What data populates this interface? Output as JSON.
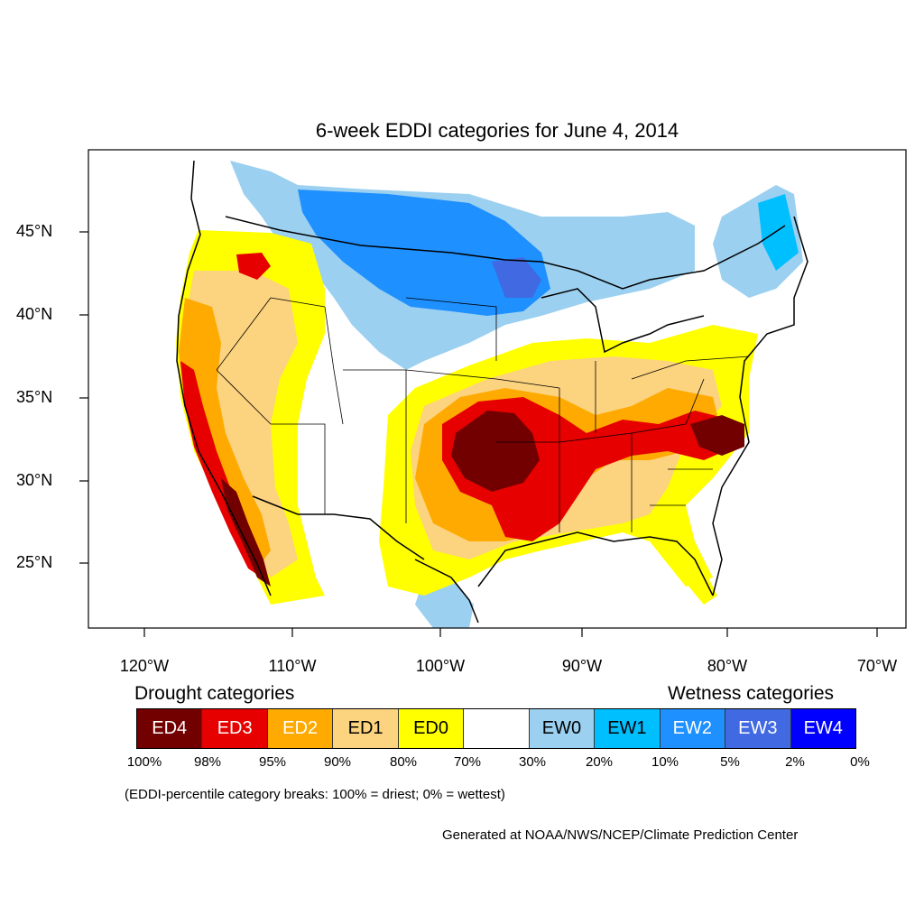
{
  "title": "6-week EDDI categories for June 4, 2014",
  "lat_labels": [
    "45°N",
    "40°N",
    "35°N",
    "30°N",
    "25°N"
  ],
  "lon_labels": [
    "120°W",
    "110°W",
    "100°W",
    "90°W",
    "80°W",
    "70°W"
  ],
  "drought_heading": "Drought categories",
  "wetness_heading": "Wetness categories",
  "legend": [
    {
      "label": "ED4",
      "color": "#730000",
      "text_color": "#ffffff"
    },
    {
      "label": "ED3",
      "color": "#e60000",
      "text_color": "#ffffff"
    },
    {
      "label": "ED2",
      "color": "#ffaa00",
      "text_color": "#ffffff"
    },
    {
      "label": "ED1",
      "color": "#fcd37f",
      "text_color": "#000000"
    },
    {
      "label": "ED0",
      "color": "#ffff00",
      "text_color": "#000000"
    },
    {
      "label": "",
      "color": "#ffffff",
      "text_color": "#000000"
    },
    {
      "label": "EW0",
      "color": "#9cd0f0",
      "text_color": "#000000"
    },
    {
      "label": "EW1",
      "color": "#00bfff",
      "text_color": "#000000"
    },
    {
      "label": "EW2",
      "color": "#1e90ff",
      "text_color": "#ffffff"
    },
    {
      "label": "EW3",
      "color": "#4169e1",
      "text_color": "#ffffff"
    },
    {
      "label": "EW4",
      "color": "#0000ff",
      "text_color": "#ffffff"
    }
  ],
  "breaks": [
    "100%",
    "98%",
    "95%",
    "90%",
    "80%",
    "70%",
    "30%",
    "20%",
    "10%",
    "5%",
    "2%",
    "0%"
  ],
  "note": "(EDDI-percentile category breaks: 100% = driest; 0% = wettest)",
  "credit": "Generated at NOAA/NWS/NCEP/Climate Prediction Center"
}
